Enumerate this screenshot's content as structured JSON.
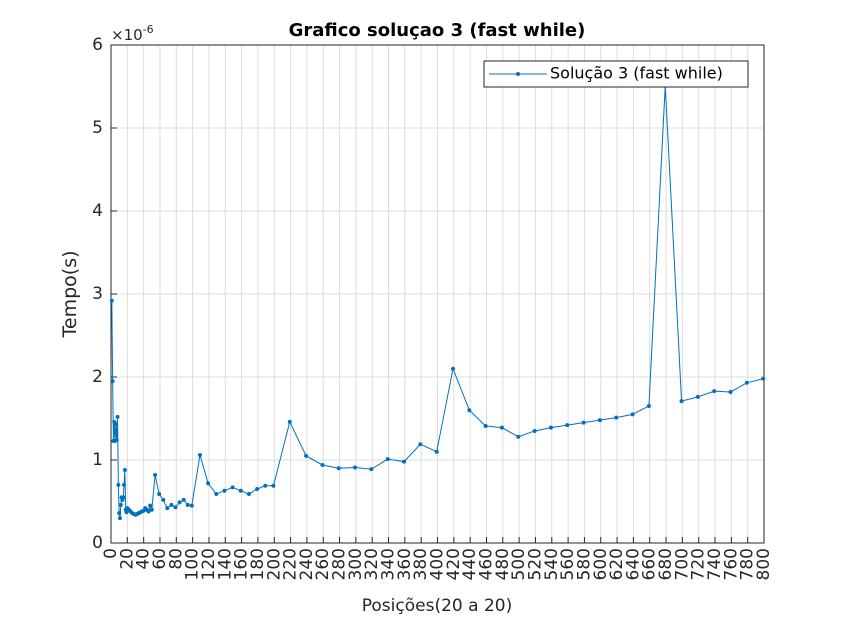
{
  "chart_data": {
    "type": "line",
    "title": "Grafico soluçao 3 (fast while)",
    "x_label": "Posições(20 a 20)",
    "y_label": "Tempo(s)",
    "y_exponent": {
      "base": "×10",
      "power": "-6"
    },
    "xlim": [
      0,
      800
    ],
    "xticks": [
      0,
      20,
      40,
      60,
      80,
      100,
      120,
      140,
      160,
      180,
      200,
      220,
      240,
      260,
      280,
      300,
      320,
      340,
      360,
      380,
      400,
      420,
      440,
      460,
      480,
      500,
      520,
      540,
      560,
      580,
      600,
      620,
      640,
      660,
      680,
      700,
      720,
      740,
      760,
      780,
      800
    ],
    "ylim": [
      0,
      6
    ],
    "yticks": [
      0,
      1,
      2,
      3,
      4,
      5,
      6
    ],
    "grid": true,
    "legend_position": "top-right",
    "series": [
      {
        "name": "Solução 3 (fast while)",
        "color": "#0072bd",
        "x": [
          1,
          2,
          3,
          4,
          5,
          6,
          7,
          8,
          9,
          10,
          11,
          12,
          13,
          14,
          15,
          16,
          17,
          18,
          19,
          20,
          22,
          24,
          26,
          28,
          30,
          32,
          34,
          36,
          38,
          40,
          42,
          44,
          46,
          48,
          50,
          54,
          59,
          64,
          69,
          74,
          79,
          84,
          89,
          94,
          99,
          109,
          119,
          129,
          139,
          149,
          159,
          169,
          179,
          189,
          199,
          219,
          239,
          259,
          279,
          299,
          319,
          339,
          359,
          379,
          399,
          419,
          439,
          459,
          479,
          499,
          519,
          539,
          559,
          579,
          599,
          619,
          639,
          659,
          679,
          699,
          719,
          739,
          759,
          779,
          799
        ],
        "values": [
          2.92,
          1.95,
          1.23,
          1.46,
          1.23,
          1.43,
          1.24,
          1.52,
          0.7,
          0.36,
          0.3,
          0.46,
          0.55,
          0.52,
          0.55,
          0.7,
          0.88,
          0.4,
          0.37,
          0.42,
          0.4,
          0.38,
          0.36,
          0.35,
          0.34,
          0.35,
          0.36,
          0.37,
          0.38,
          0.39,
          0.42,
          0.4,
          0.38,
          0.45,
          0.4,
          0.82,
          0.59,
          0.52,
          0.42,
          0.46,
          0.43,
          0.49,
          0.52,
          0.46,
          0.45,
          1.06,
          0.72,
          0.59,
          0.63,
          0.67,
          0.63,
          0.59,
          0.65,
          0.69,
          0.69,
          1.46,
          1.05,
          0.94,
          0.9,
          0.91,
          0.89,
          1.01,
          0.98,
          1.19,
          1.1,
          2.1,
          1.6,
          1.41,
          1.39,
          1.28,
          1.35,
          1.39,
          1.42,
          1.45,
          1.48,
          1.51,
          1.55,
          1.65,
          5.51,
          1.71,
          1.76,
          1.83,
          1.82,
          1.93,
          1.98
        ]
      }
    ]
  }
}
